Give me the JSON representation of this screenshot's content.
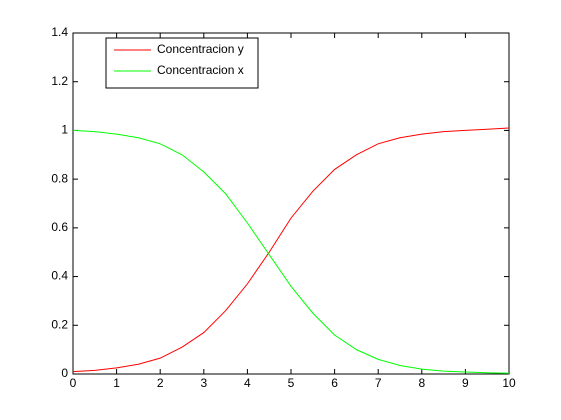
{
  "chart_data": {
    "type": "line",
    "x": [
      0,
      0.5,
      1,
      1.5,
      2,
      2.5,
      3,
      3.5,
      4,
      4.5,
      5,
      5.5,
      6,
      6.5,
      7,
      7.5,
      8,
      8.5,
      9,
      9.5,
      10
    ],
    "series": [
      {
        "name": "Concentracion y",
        "color": "#ff0000",
        "values": [
          0.01,
          0.015,
          0.025,
          0.04,
          0.065,
          0.11,
          0.17,
          0.26,
          0.37,
          0.5,
          0.64,
          0.75,
          0.84,
          0.9,
          0.945,
          0.97,
          0.985,
          0.995,
          1.0,
          1.005,
          1.01
        ]
      },
      {
        "name": "Concentracion x",
        "color": "#00ff00",
        "values": [
          1.0,
          0.995,
          0.985,
          0.97,
          0.945,
          0.9,
          0.83,
          0.74,
          0.62,
          0.49,
          0.36,
          0.25,
          0.16,
          0.1,
          0.06,
          0.035,
          0.02,
          0.012,
          0.008,
          0.005,
          0.003
        ]
      }
    ],
    "xlim": [
      0,
      10
    ],
    "xticks": [
      0,
      1,
      2,
      3,
      4,
      5,
      6,
      7,
      8,
      9,
      10
    ],
    "ylim": [
      0,
      1.4
    ],
    "yticks": [
      0,
      0.2,
      0.4,
      0.6,
      0.8,
      1,
      1.2,
      1.4
    ],
    "grid": false,
    "legend": "upper left"
  }
}
